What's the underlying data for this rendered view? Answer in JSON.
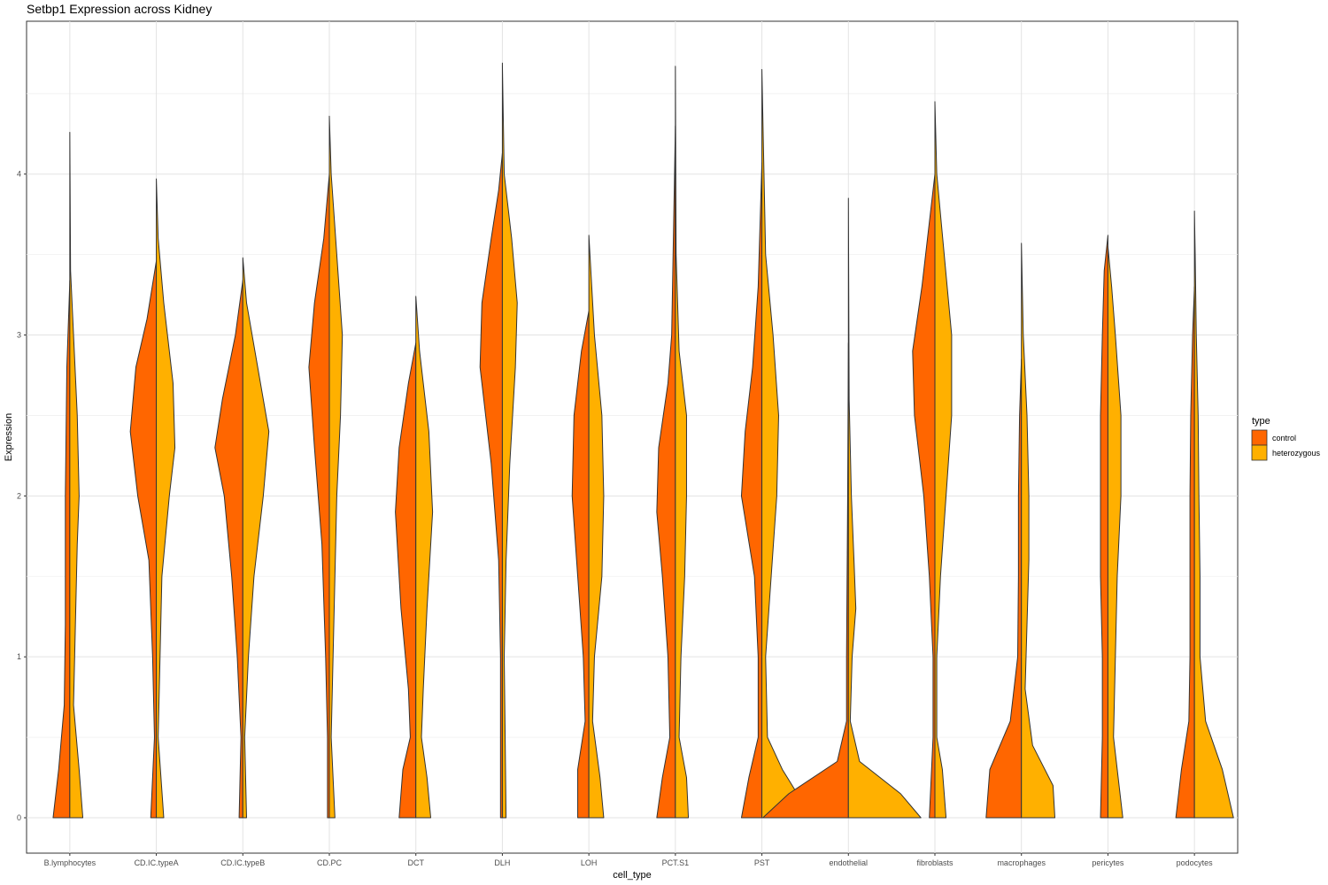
{
  "chart_data": {
    "type": "violin",
    "title": "Setbp1 Expression across Kidney",
    "xlabel": "cell_type",
    "ylabel": "Expression",
    "ylim": [
      -0.22,
      4.95
    ],
    "yticks": [
      0,
      1,
      2,
      3,
      4
    ],
    "grid": true,
    "legend": {
      "title": "type",
      "position": "right",
      "entries": [
        {
          "label": "control",
          "color": "#ff6600"
        },
        {
          "label": "heterozygous",
          "color": "#ffb000"
        }
      ]
    },
    "categories": [
      "B.lymphocytes",
      "CD.IC.typeA",
      "CD.IC.typeB",
      "CD.PC",
      "DCT",
      "DLH",
      "LOH",
      "PCT.S1",
      "PST",
      "endothelial",
      "fibroblasts",
      "macrophages",
      "pericytes",
      "podocytes"
    ],
    "series": [
      {
        "name": "control",
        "color": "#ff6600",
        "max": [
          3.34,
          3.46,
          3.34,
          4.0,
          2.95,
          4.13,
          3.15,
          4.3,
          4.07,
          2.95,
          4.0,
          2.85,
          3.62,
          3.3
        ],
        "profiles": [
          [
            [
              0,
              0.45
            ],
            [
              0.3,
              0.3
            ],
            [
              0.7,
              0.15
            ],
            [
              1.2,
              0.12
            ],
            [
              2,
              0.12
            ],
            [
              2.8,
              0.08
            ],
            [
              3.2,
              0.02
            ],
            [
              3.34,
              0
            ]
          ],
          [
            [
              0,
              0.15
            ],
            [
              0.5,
              0.05
            ],
            [
              1,
              0.1
            ],
            [
              1.6,
              0.2
            ],
            [
              2,
              0.5
            ],
            [
              2.4,
              0.7
            ],
            [
              2.8,
              0.55
            ],
            [
              3.1,
              0.25
            ],
            [
              3.46,
              0
            ]
          ],
          [
            [
              0,
              0.1
            ],
            [
              0.5,
              0.05
            ],
            [
              1,
              0.15
            ],
            [
              1.5,
              0.3
            ],
            [
              2,
              0.5
            ],
            [
              2.3,
              0.75
            ],
            [
              2.6,
              0.55
            ],
            [
              3,
              0.2
            ],
            [
              3.34,
              0
            ]
          ],
          [
            [
              0,
              0.05
            ],
            [
              0.5,
              0.05
            ],
            [
              1,
              0.1
            ],
            [
              1.7,
              0.2
            ],
            [
              2.3,
              0.4
            ],
            [
              2.8,
              0.55
            ],
            [
              3.2,
              0.4
            ],
            [
              3.6,
              0.15
            ],
            [
              4,
              0
            ]
          ],
          [
            [
              0,
              0.45
            ],
            [
              0.3,
              0.35
            ],
            [
              0.5,
              0.15
            ],
            [
              0.8,
              0.2
            ],
            [
              1.3,
              0.4
            ],
            [
              1.9,
              0.55
            ],
            [
              2.3,
              0.45
            ],
            [
              2.7,
              0.2
            ],
            [
              2.95,
              0
            ]
          ],
          [
            [
              0,
              0.05
            ],
            [
              1,
              0.05
            ],
            [
              1.6,
              0.1
            ],
            [
              2.2,
              0.3
            ],
            [
              2.8,
              0.6
            ],
            [
              3.2,
              0.55
            ],
            [
              3.6,
              0.3
            ],
            [
              3.9,
              0.1
            ],
            [
              4.13,
              0
            ]
          ],
          [
            [
              0,
              0.3
            ],
            [
              0.3,
              0.3
            ],
            [
              0.6,
              0.1
            ],
            [
              1,
              0.15
            ],
            [
              1.5,
              0.3
            ],
            [
              2,
              0.45
            ],
            [
              2.5,
              0.4
            ],
            [
              2.9,
              0.2
            ],
            [
              3.15,
              0
            ]
          ],
          [
            [
              0,
              0.5
            ],
            [
              0.25,
              0.35
            ],
            [
              0.5,
              0.15
            ],
            [
              1,
              0.2
            ],
            [
              1.5,
              0.35
            ],
            [
              1.9,
              0.5
            ],
            [
              2.3,
              0.45
            ],
            [
              2.7,
              0.2
            ],
            [
              3,
              0.1
            ],
            [
              4.3,
              0
            ]
          ],
          [
            [
              0,
              0.55
            ],
            [
              0.25,
              0.35
            ],
            [
              0.5,
              0.1
            ],
            [
              1,
              0.1
            ],
            [
              1.5,
              0.2
            ],
            [
              2,
              0.55
            ],
            [
              2.4,
              0.45
            ],
            [
              2.8,
              0.25
            ],
            [
              3.3,
              0.1
            ],
            [
              4.07,
              0
            ]
          ],
          [
            [
              0,
              2.3
            ],
            [
              0.15,
              1.6
            ],
            [
              0.35,
              0.3
            ],
            [
              0.6,
              0.05
            ],
            [
              1,
              0.05
            ],
            [
              2,
              0.02
            ],
            [
              2.95,
              0
            ]
          ],
          [
            [
              0,
              0.15
            ],
            [
              0.5,
              0.05
            ],
            [
              1,
              0.05
            ],
            [
              1.5,
              0.15
            ],
            [
              2,
              0.3
            ],
            [
              2.5,
              0.55
            ],
            [
              2.9,
              0.6
            ],
            [
              3.3,
              0.35
            ],
            [
              3.8,
              0.1
            ],
            [
              4,
              0
            ]
          ],
          [
            [
              0,
              0.95
            ],
            [
              0.3,
              0.85
            ],
            [
              0.6,
              0.3
            ],
            [
              1,
              0.1
            ],
            [
              1.5,
              0.08
            ],
            [
              2,
              0.08
            ],
            [
              2.5,
              0.05
            ],
            [
              2.85,
              0
            ]
          ],
          [
            [
              0,
              0.2
            ],
            [
              0.5,
              0.15
            ],
            [
              1,
              0.15
            ],
            [
              1.5,
              0.2
            ],
            [
              2,
              0.2
            ],
            [
              2.5,
              0.2
            ],
            [
              3,
              0.15
            ],
            [
              3.4,
              0.1
            ],
            [
              3.62,
              0
            ]
          ],
          [
            [
              0,
              0.5
            ],
            [
              0.3,
              0.35
            ],
            [
              0.6,
              0.15
            ],
            [
              1,
              0.12
            ],
            [
              1.5,
              0.12
            ],
            [
              2,
              0.12
            ],
            [
              2.5,
              0.1
            ],
            [
              3,
              0.05
            ],
            [
              3.3,
              0
            ]
          ]
        ]
      },
      {
        "name": "heterozygous",
        "color": "#ffb000",
        "max": [
          4.26,
          3.97,
          3.48,
          4.36,
          3.24,
          4.69,
          3.62,
          4.67,
          4.65,
          3.85,
          4.45,
          3.57,
          3.55,
          3.77
        ],
        "profiles": [
          [
            [
              0,
              0.35
            ],
            [
              0.3,
              0.25
            ],
            [
              0.7,
              0.1
            ],
            [
              1.2,
              0.15
            ],
            [
              1.7,
              0.2
            ],
            [
              2,
              0.25
            ],
            [
              2.5,
              0.2
            ],
            [
              3,
              0.1
            ],
            [
              3.4,
              0.02
            ],
            [
              4.26,
              0
            ]
          ],
          [
            [
              0,
              0.2
            ],
            [
              0.5,
              0.05
            ],
            [
              1,
              0.1
            ],
            [
              1.5,
              0.15
            ],
            [
              2,
              0.35
            ],
            [
              2.3,
              0.5
            ],
            [
              2.7,
              0.45
            ],
            [
              3.2,
              0.2
            ],
            [
              3.6,
              0.05
            ],
            [
              3.97,
              0
            ]
          ],
          [
            [
              0,
              0.1
            ],
            [
              0.5,
              0.05
            ],
            [
              1,
              0.15
            ],
            [
              1.5,
              0.3
            ],
            [
              2,
              0.55
            ],
            [
              2.4,
              0.7
            ],
            [
              2.8,
              0.4
            ],
            [
              3.2,
              0.1
            ],
            [
              3.48,
              0
            ]
          ],
          [
            [
              0,
              0.15
            ],
            [
              0.5,
              0.05
            ],
            [
              1,
              0.1
            ],
            [
              1.5,
              0.15
            ],
            [
              2,
              0.2
            ],
            [
              2.5,
              0.3
            ],
            [
              3,
              0.35
            ],
            [
              3.5,
              0.2
            ],
            [
              4,
              0.05
            ],
            [
              4.36,
              0
            ]
          ],
          [
            [
              0,
              0.4
            ],
            [
              0.25,
              0.3
            ],
            [
              0.5,
              0.15
            ],
            [
              0.8,
              0.2
            ],
            [
              1.3,
              0.3
            ],
            [
              1.9,
              0.45
            ],
            [
              2.4,
              0.35
            ],
            [
              2.9,
              0.1
            ],
            [
              3.24,
              0
            ]
          ],
          [
            [
              0,
              0.1
            ],
            [
              1,
              0.05
            ],
            [
              1.6,
              0.1
            ],
            [
              2.2,
              0.2
            ],
            [
              2.8,
              0.35
            ],
            [
              3.2,
              0.4
            ],
            [
              3.6,
              0.25
            ],
            [
              4,
              0.05
            ],
            [
              4.69,
              0
            ]
          ],
          [
            [
              0,
              0.4
            ],
            [
              0.25,
              0.3
            ],
            [
              0.6,
              0.1
            ],
            [
              1,
              0.15
            ],
            [
              1.5,
              0.35
            ],
            [
              2,
              0.4
            ],
            [
              2.5,
              0.35
            ],
            [
              3,
              0.15
            ],
            [
              3.62,
              0
            ]
          ],
          [
            [
              0,
              0.35
            ],
            [
              0.25,
              0.3
            ],
            [
              0.5,
              0.1
            ],
            [
              1,
              0.15
            ],
            [
              1.5,
              0.25
            ],
            [
              2,
              0.3
            ],
            [
              2.5,
              0.3
            ],
            [
              2.9,
              0.1
            ],
            [
              3.5,
              0.02
            ],
            [
              4.67,
              0
            ]
          ],
          [
            [
              0,
              1.05
            ],
            [
              0.15,
              0.95
            ],
            [
              0.3,
              0.55
            ],
            [
              0.5,
              0.15
            ],
            [
              1,
              0.1
            ],
            [
              1.5,
              0.25
            ],
            [
              2,
              0.4
            ],
            [
              2.5,
              0.45
            ],
            [
              3,
              0.3
            ],
            [
              3.5,
              0.1
            ],
            [
              4.65,
              0
            ]
          ],
          [
            [
              0,
              1.95
            ],
            [
              0.15,
              1.4
            ],
            [
              0.35,
              0.3
            ],
            [
              0.6,
              0.05
            ],
            [
              1,
              0.1
            ],
            [
              1.3,
              0.2
            ],
            [
              1.6,
              0.15
            ],
            [
              2,
              0.08
            ],
            [
              2.6,
              0.02
            ],
            [
              3.85,
              0
            ]
          ],
          [
            [
              0,
              0.3
            ],
            [
              0.3,
              0.2
            ],
            [
              0.5,
              0.05
            ],
            [
              1,
              0.05
            ],
            [
              1.5,
              0.15
            ],
            [
              2,
              0.3
            ],
            [
              2.5,
              0.45
            ],
            [
              3,
              0.45
            ],
            [
              3.5,
              0.25
            ],
            [
              4,
              0.05
            ],
            [
              4.45,
              0
            ]
          ],
          [
            [
              0,
              0.9
            ],
            [
              0.2,
              0.85
            ],
            [
              0.45,
              0.3
            ],
            [
              0.8,
              0.1
            ],
            [
              1.2,
              0.15
            ],
            [
              1.6,
              0.2
            ],
            [
              2,
              0.2
            ],
            [
              2.5,
              0.15
            ],
            [
              3,
              0.05
            ],
            [
              3.57,
              0
            ]
          ],
          [
            [
              0,
              0.4
            ],
            [
              0.5,
              0.15
            ],
            [
              1,
              0.2
            ],
            [
              1.5,
              0.25
            ],
            [
              2,
              0.35
            ],
            [
              2.5,
              0.35
            ],
            [
              3,
              0.2
            ],
            [
              3.3,
              0.1
            ],
            [
              3.55,
              0
            ]
          ],
          [
            [
              0,
              1.05
            ],
            [
              0.3,
              0.75
            ],
            [
              0.6,
              0.3
            ],
            [
              1,
              0.15
            ],
            [
              1.5,
              0.15
            ],
            [
              2,
              0.12
            ],
            [
              2.5,
              0.1
            ],
            [
              3,
              0.05
            ],
            [
              3.5,
              0.02
            ],
            [
              3.77,
              0
            ]
          ]
        ]
      }
    ]
  }
}
